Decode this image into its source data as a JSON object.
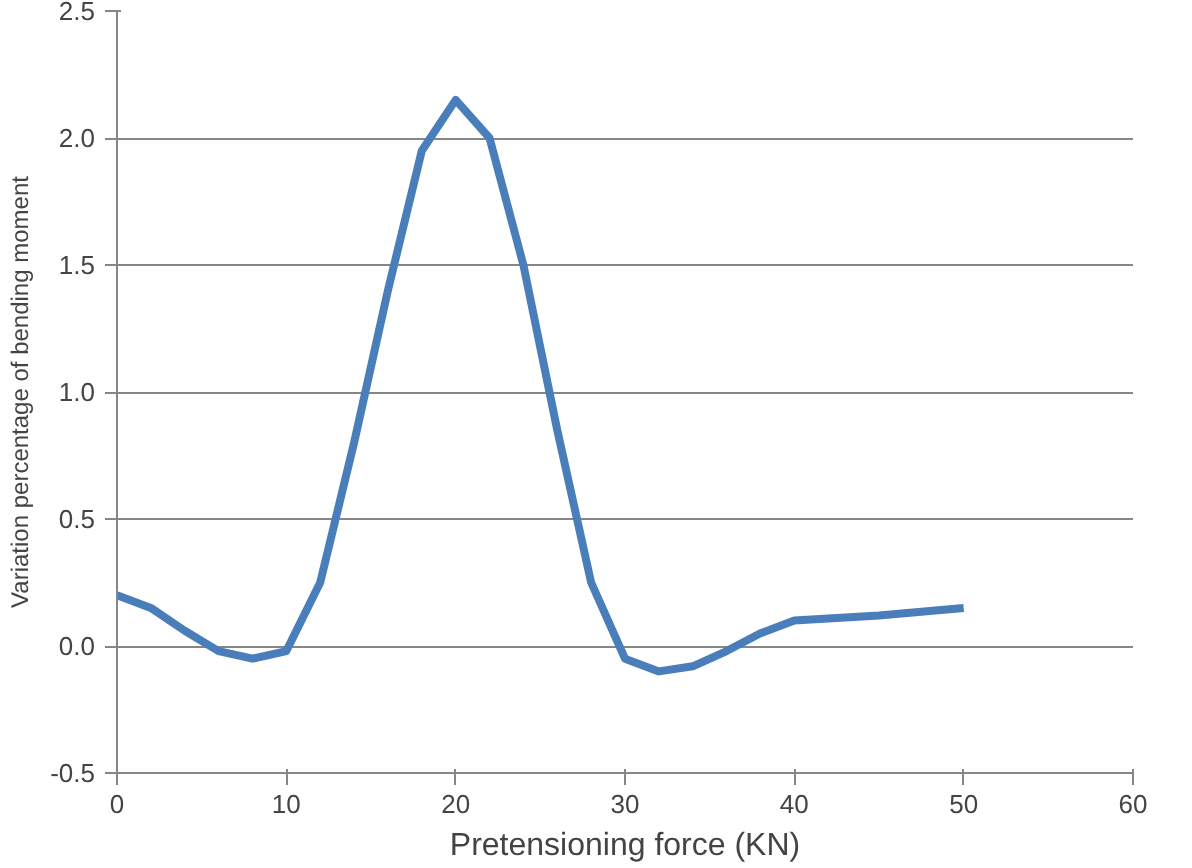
{
  "chart_data": {
    "type": "line",
    "xlabel": "Pretensioning force (KN)",
    "ylabel": "Variation percentage of bending moment",
    "x": [
      0,
      2,
      4,
      6,
      8,
      10,
      12,
      14,
      16,
      18,
      20,
      22,
      24,
      26,
      28,
      30,
      32,
      34,
      36,
      38,
      40,
      45,
      50
    ],
    "series": [
      {
        "color": "#4a7ebb",
        "values": [
          0.2,
          0.15,
          0.06,
          -0.02,
          -0.05,
          -0.02,
          0.25,
          0.8,
          1.4,
          1.95,
          2.15,
          2.0,
          1.5,
          0.85,
          0.25,
          -0.05,
          -0.1,
          -0.08,
          -0.02,
          0.05,
          0.1,
          0.12,
          0.15
        ]
      }
    ],
    "xlim": [
      0,
      60
    ],
    "xticks": [
      0,
      10,
      20,
      30,
      40,
      50,
      60
    ],
    "ylim": [
      -0.5,
      2.5
    ],
    "yticks": [
      {
        "value": -0.5,
        "label": "-0.5"
      },
      {
        "value": 0,
        "label": "0.0"
      },
      {
        "value": 0.5,
        "label": "0.5"
      },
      {
        "value": 1,
        "label": "1.0"
      },
      {
        "value": 1.5,
        "label": "1.5"
      },
      {
        "value": 2,
        "label": "2.0"
      },
      {
        "value": 2.5,
        "label": "2.5"
      }
    ],
    "grid": "y",
    "marker": "none",
    "line_style": "solid"
  }
}
